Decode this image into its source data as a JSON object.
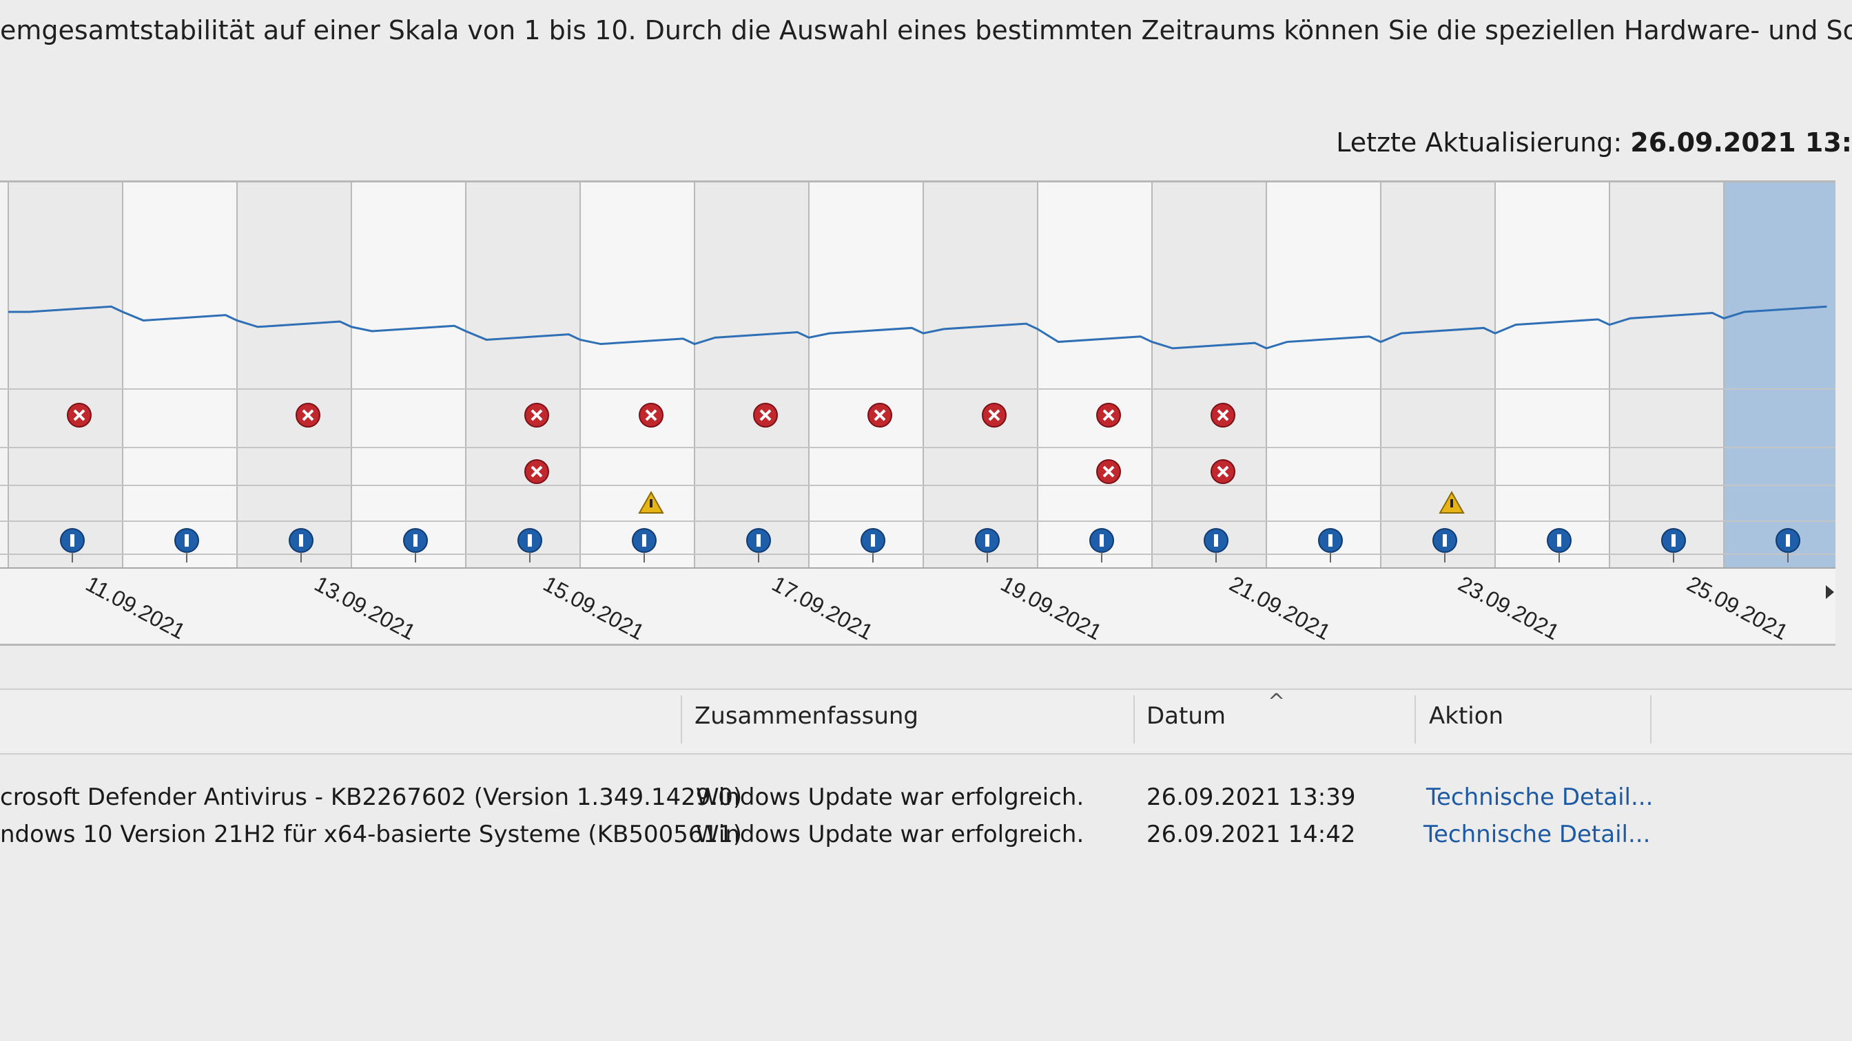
{
  "description_line": "emgesamtstabilität auf einer Skala von 1 bis 10. Durch die Auswahl eines bestimmten Zeitraums können Sie die speziellen Hardware- und Softwareprobleme überprüfen",
  "last_update": {
    "label": "Letzte Aktualisierung:",
    "value": "26.09.2021 13:"
  },
  "chart": {
    "date_labels": [
      "11.09.2021",
      "13.09.2021",
      "15.09.2021",
      "17.09.2021",
      "19.09.2021",
      "21.09.2021",
      "23.09.2021",
      "25.09.2021"
    ],
    "columns": 16,
    "selected_column": 15,
    "stability_index": [
      4.6,
      4.2,
      3.9,
      3.7,
      3.3,
      3.1,
      3.4,
      3.6,
      3.8,
      3.2,
      2.9,
      3.2,
      3.6,
      4.0,
      4.3,
      4.6
    ],
    "events": {
      "app_errors": [
        0,
        2,
        4,
        5,
        6,
        7,
        8,
        9,
        10
      ],
      "windows_errors": [
        4,
        9,
        10
      ],
      "warnings": [
        5,
        12
      ],
      "info": [
        0,
        1,
        2,
        3,
        4,
        5,
        6,
        7,
        8,
        9,
        10,
        11,
        12,
        13,
        14,
        15
      ]
    },
    "colors": {
      "line": "#2e6fb5",
      "error": "#c0282e",
      "info": "#1f5fa9",
      "warning": "#e7b416",
      "selected": "#a9c3de"
    }
  },
  "table": {
    "headers": {
      "source": "",
      "summary": "Zusammenfassung",
      "date": "Datum",
      "action": "Aktion"
    },
    "rows": [
      {
        "source": "crosoft Defender Antivirus - KB2267602 (Version 1.349.1429.0)",
        "summary": "Windows Update war erfolgreich.",
        "date": "26.09.2021 13:39",
        "action": "Technische Detail..."
      },
      {
        "source": "ndows 10 Version 21H2 für x64-basierte Systeme (KB5005611)",
        "summary": "Windows Update war erfolgreich.",
        "date": "26.09.2021 14:42",
        "action": "Technische Detail..."
      }
    ]
  }
}
